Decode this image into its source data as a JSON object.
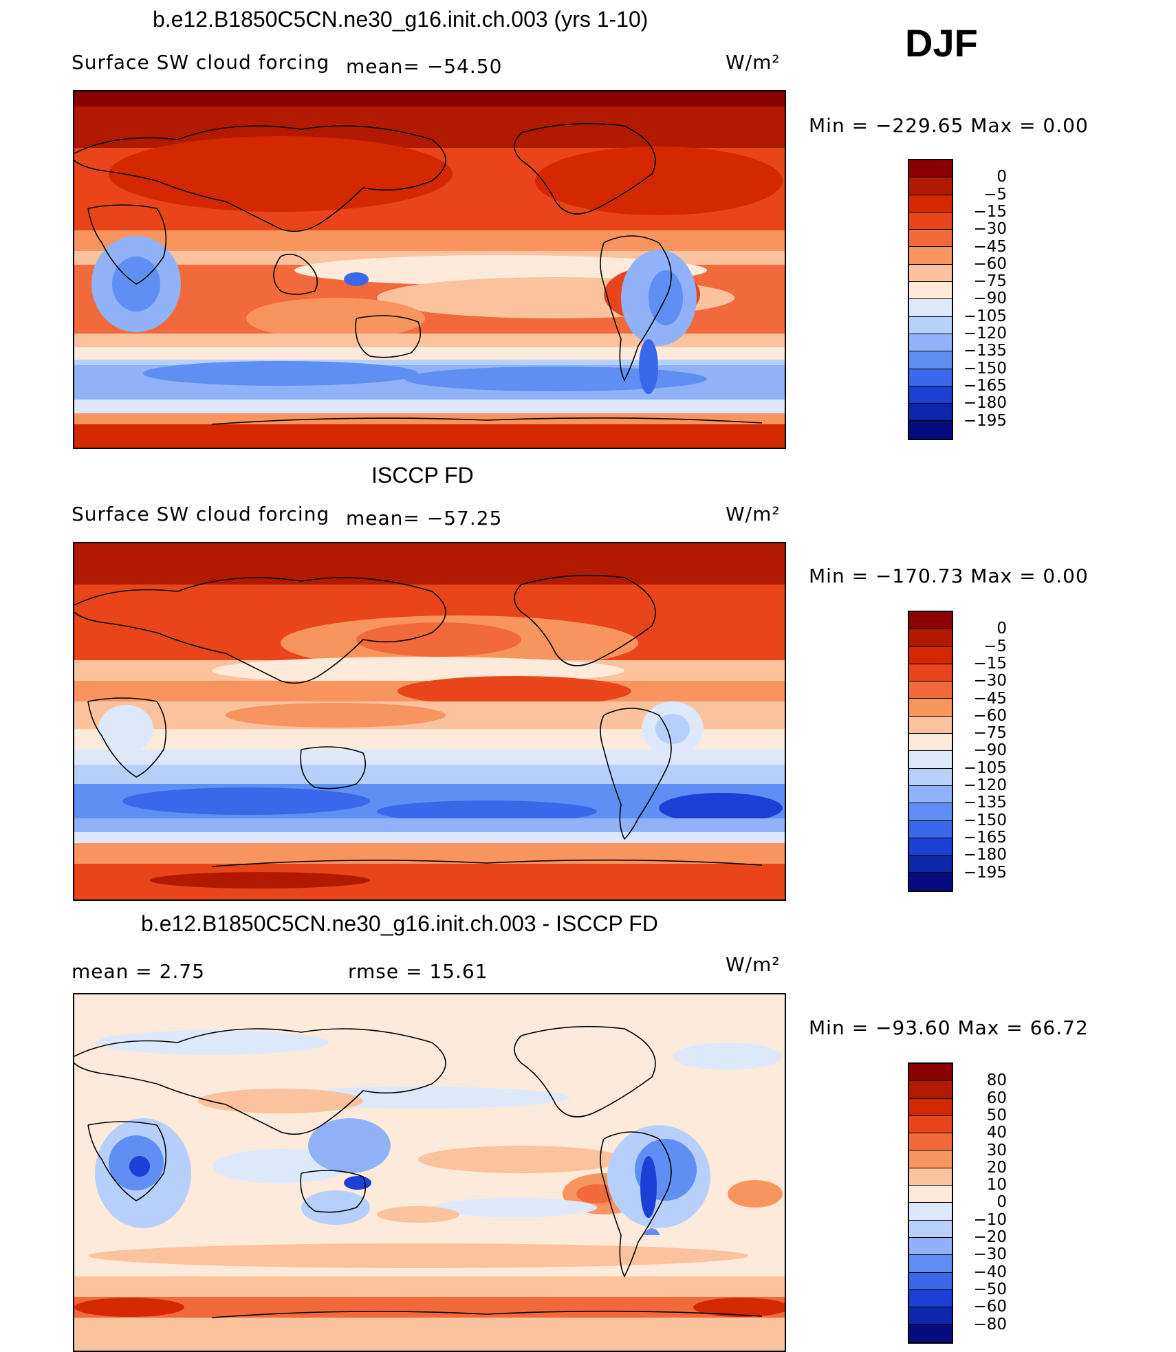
{
  "season": "DJF",
  "panels": [
    {
      "title": "b.e12.B1850C5CN.ne30_g16.init.ch.003 (yrs 1-10)",
      "left_label": "Surface SW cloud forcing",
      "mid_label": "mean= −54.50",
      "units": "W/m²",
      "minmax": "Min  =  −229.65  Max  =      0.00",
      "colorbar_labels": [
        "0",
        "−5",
        "−15",
        "−30",
        "−45",
        "−60",
        "−75",
        "−90",
        "−105",
        "−120",
        "−135",
        "−150",
        "−165",
        "−180",
        "−195"
      ],
      "colorbar_colors": [
        "#8b0000",
        "#b21a00",
        "#d42800",
        "#e8461a",
        "#f26a3c",
        "#f8955f",
        "#fbc29e",
        "#feeadb",
        "#dde9fb",
        "#b7d0fb",
        "#8fb2f8",
        "#5f8ff2",
        "#3b68ea",
        "#1c40d6",
        "#0c27aa",
        "#060c80"
      ]
    },
    {
      "title": "ISCCP FD",
      "left_label": "Surface SW cloud forcing",
      "mid_label": "mean= −57.25",
      "units": "W/m²",
      "minmax": "Min  =  −170.73  Max  =      0.00",
      "colorbar_labels": [
        "0",
        "−5",
        "−15",
        "−30",
        "−45",
        "−60",
        "−75",
        "−90",
        "−105",
        "−120",
        "−135",
        "−150",
        "−165",
        "−180",
        "−195"
      ],
      "colorbar_colors": [
        "#8b0000",
        "#b21a00",
        "#d42800",
        "#e8461a",
        "#f26a3c",
        "#f8955f",
        "#fbc29e",
        "#feeadb",
        "#dde9fb",
        "#b7d0fb",
        "#8fb2f8",
        "#5f8ff2",
        "#3b68ea",
        "#1c40d6",
        "#0c27aa",
        "#060c80"
      ]
    },
    {
      "title": "b.e12.B1850C5CN.ne30_g16.init.ch.003 - ISCCP FD",
      "left_label": "mean  =     2.75",
      "mid_label": "rmse  =    15.61",
      "units": "W/m²",
      "minmax": "Min  =  −93.60  Max  =    66.72",
      "colorbar_labels": [
        "80",
        "60",
        "50",
        "40",
        "30",
        "20",
        "10",
        "0",
        "−10",
        "−20",
        "−30",
        "−40",
        "−50",
        "−60",
        "−80"
      ],
      "colorbar_colors": [
        "#8b0000",
        "#b21a00",
        "#d42800",
        "#e8461a",
        "#f26a3c",
        "#f8955f",
        "#fbc29e",
        "#feeadb",
        "#dde9fb",
        "#b7d0fb",
        "#8fb2f8",
        "#5f8ff2",
        "#3b68ea",
        "#1c40d6",
        "#0c27aa",
        "#060c80"
      ]
    }
  ]
}
